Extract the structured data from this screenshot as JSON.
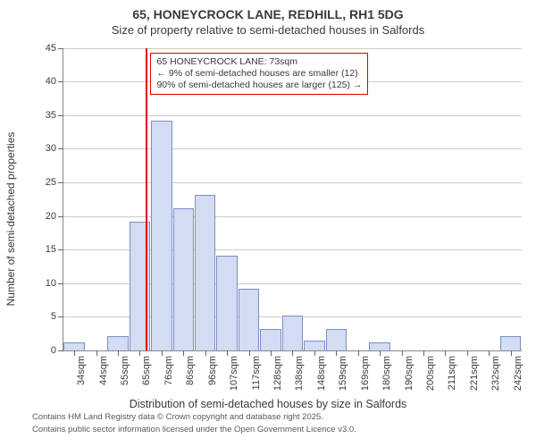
{
  "title": "65, HONEYCROCK LANE, REDHILL, RH1 5DG",
  "subtitle": "Size of property relative to semi-detached houses in Salfords",
  "ylabel": "Number of semi-detached properties",
  "xlabel": "Distribution of semi-detached houses by size in Salfords",
  "footnote1": "Contains HM Land Registry data © Crown copyright and database right 2025.",
  "footnote2": "Contains public sector information licensed under the Open Government Licence v3.0.",
  "chart": {
    "type": "histogram",
    "bar_fill": "#d2dcf2",
    "bar_border": "#7a8fc7",
    "grid_color": "#cccccc",
    "background_color": "#ffffff",
    "ymax": 45,
    "ytick_step": 5,
    "yticks": [
      0,
      5,
      10,
      15,
      20,
      25,
      30,
      35,
      40,
      45
    ],
    "categories": [
      "34sqm",
      "44sqm",
      "55sqm",
      "65sqm",
      "76sqm",
      "86sqm",
      "96sqm",
      "107sqm",
      "117sqm",
      "128sqm",
      "138sqm",
      "148sqm",
      "159sqm",
      "169sqm",
      "180sqm",
      "190sqm",
      "200sqm",
      "211sqm",
      "221sqm",
      "232sqm",
      "242sqm"
    ],
    "values": [
      1.1,
      0,
      2,
      19,
      34,
      21,
      23,
      14,
      9,
      3,
      5,
      1.3,
      3,
      0,
      1,
      0,
      0,
      0,
      0,
      0,
      2
    ],
    "reference_line": {
      "after_index": 3,
      "color": "#e00000",
      "value_sqm": 73
    },
    "annotation": {
      "line1": "← 9% of semi-detached houses are smaller (12)",
      "line0": "65 HONEYCROCK LANE: 73sqm",
      "line2": "90% of semi-detached houses are larger (125) →",
      "border_color": "#e00000"
    }
  }
}
